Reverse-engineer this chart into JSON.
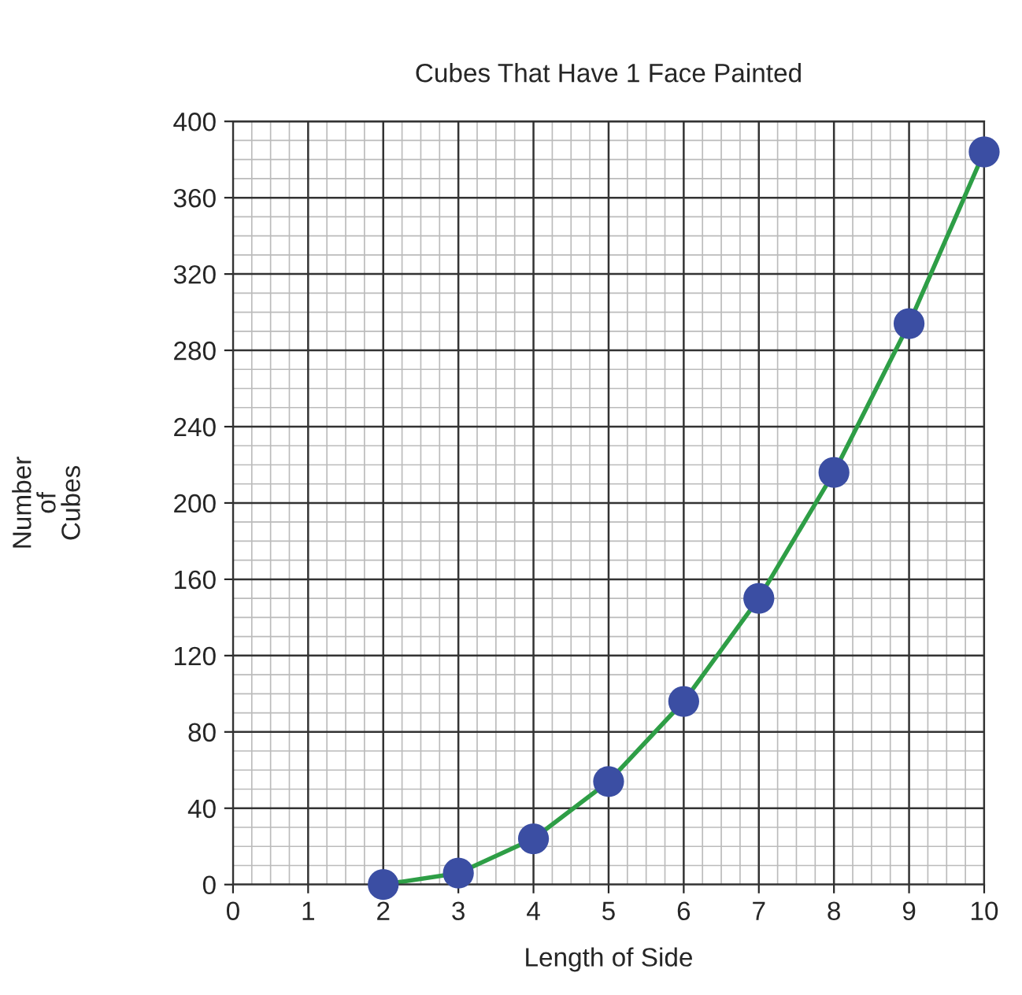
{
  "chart_data": {
    "type": "line",
    "title": "Cubes That Have 1 Face Painted",
    "xlabel": "Length of Side",
    "ylabel": "Number\nof\nCubes",
    "x": [
      2,
      3,
      4,
      5,
      6,
      7,
      8,
      9,
      10
    ],
    "series": [
      {
        "color": "#2e9e46",
        "values": [
          0,
          6,
          24,
          54,
          96,
          150,
          216,
          294,
          384
        ]
      },
      {
        "type": "scatter",
        "color": "#3b4ea3",
        "values": [
          0,
          6,
          24,
          54,
          96,
          150,
          216,
          294,
          384
        ]
      }
    ],
    "xlim": [
      0,
      10
    ],
    "xticks": [
      0,
      1,
      2,
      3,
      4,
      5,
      6,
      7,
      8,
      9,
      10
    ],
    "ylim": [
      0,
      400
    ],
    "yticks": [
      0,
      40,
      80,
      120,
      160,
      200,
      240,
      280,
      320,
      360,
      400
    ],
    "grid": true,
    "line_style": "solid"
  }
}
